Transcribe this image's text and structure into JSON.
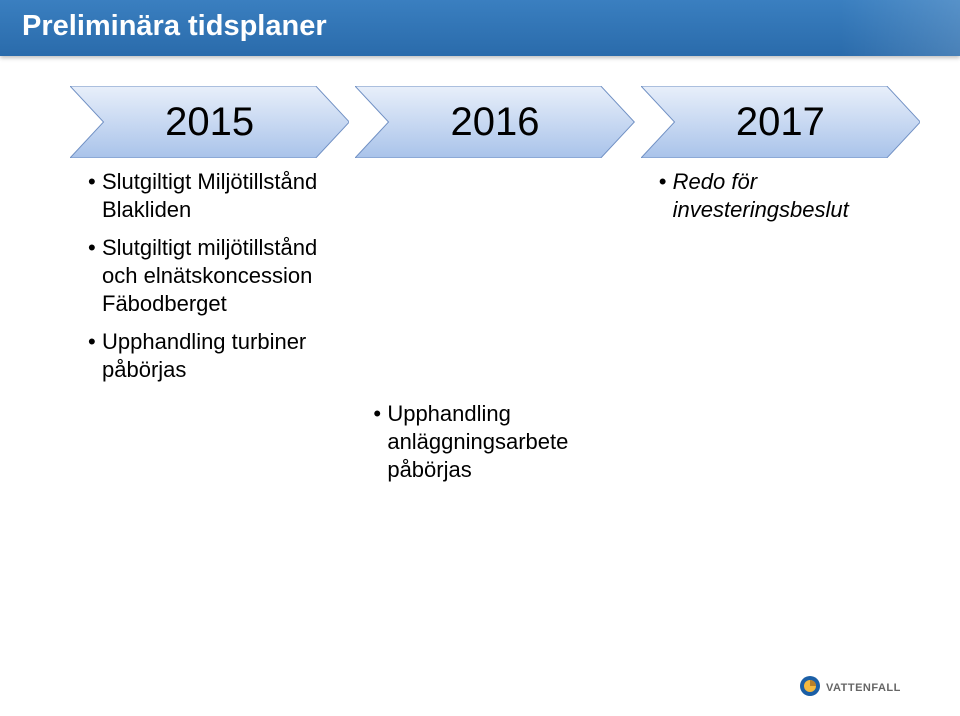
{
  "title": "Preliminära tidsplaner",
  "title_fontsize": 29,
  "title_color": "#ffffff",
  "title_bar_gradient_top": "#3a7fc0",
  "title_bar_gradient_bottom": "#2a6bab",
  "title_bar_height": 56,
  "body_fontsize": 22,
  "bullet_fontsize": 22,
  "chevron_label_fontsize": 40,
  "chevron_gradient_top": "#e8effa",
  "chevron_gradient_bottom": "#a9c3ea",
  "chevron_border": "#6f8fc3",
  "chevron_text_color": "#000000",
  "timeline": [
    {
      "label": "2015",
      "bullets": [
        "Slutgiltigt Miljötillstånd Blakliden",
        "Slutgiltigt miljötillstånd och elnätskoncession Fäbodberget",
        "Upphandling turbiner påbörjas"
      ],
      "bullets_italic": [
        false,
        false,
        false
      ]
    },
    {
      "label": "2016",
      "bullets": [
        "Upphandling anläggningsarbete påbörjas"
      ],
      "bullets_italic": [
        false
      ]
    },
    {
      "label": "2017",
      "bullets": [
        "Redo för investeringsbeslut"
      ],
      "bullets_italic": [
        true
      ]
    }
  ],
  "logo": {
    "text": "VATTENFALL",
    "text_color": "#666666",
    "text_fontsize": 11,
    "text_weight": "bold",
    "icon_outer": "#1b5fa6",
    "icon_inner": "#f4b93f",
    "flip_color": "#b77f2a"
  }
}
